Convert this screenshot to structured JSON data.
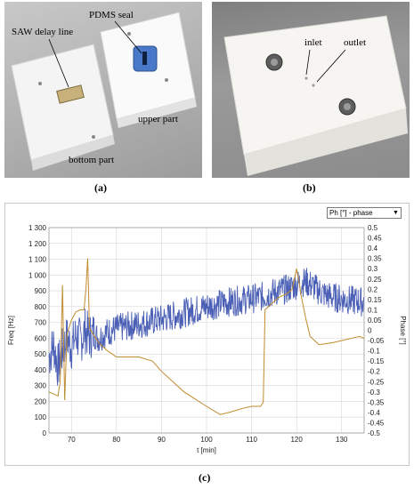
{
  "panel_a": {
    "labels": {
      "saw_delay_line": "SAW delay line",
      "pdms_seal": "PDMS seal",
      "upper_part": "upper part",
      "bottom_part": "bottom part"
    },
    "caption": "(a)"
  },
  "panel_b": {
    "labels": {
      "inlet": "inlet",
      "outlet": "outlet"
    },
    "caption": "(b)"
  },
  "panel_c": {
    "caption": "(c)",
    "series_selector": {
      "value": "Ph [°] - phase",
      "arrow": "▼"
    }
  },
  "colors": {
    "freq": "#4a5fb5",
    "phase": "#e0883a",
    "phase_overlay": "#8a9a2a",
    "grid": "#d6d6d6"
  },
  "chart_data": {
    "type": "line",
    "xlabel": "t [min]",
    "ylabel": "Freq [Hz]",
    "y2label": "Phase [°]",
    "xlim": [
      65,
      135
    ],
    "ylim": [
      0,
      1300
    ],
    "y2lim": [
      -0.5,
      0.5
    ],
    "xticks": [
      70,
      80,
      90,
      100,
      110,
      120,
      130
    ],
    "yticks": [
      "0",
      "100",
      "200",
      "300",
      "400",
      "500",
      "600",
      "700",
      "800",
      "900",
      "1 000",
      "1 100",
      "1 200",
      "1 300"
    ],
    "y2ticks": [
      "0.5",
      "0.45",
      "0.4",
      "0.35",
      "0.3",
      "0.25",
      "0.2",
      "0.15",
      "0.1",
      "0.05",
      "0",
      "-0.05",
      "-0.1",
      "-0.15",
      "-0.2",
      "-0.25",
      "-0.3",
      "-0.35",
      "-0.4",
      "-0.45",
      "-0.5"
    ],
    "grid": true,
    "series": [
      {
        "axis": "left",
        "x": [
          65,
          66,
          67,
          68,
          69,
          70,
          71,
          72,
          73,
          74,
          75,
          76,
          78,
          80,
          85,
          90,
          95,
          100,
          105,
          110,
          112,
          113,
          114,
          116,
          118,
          120,
          122,
          124,
          126,
          128,
          130,
          132,
          135
        ],
        "y": [
          480,
          560,
          420,
          520,
          600,
          540,
          620,
          580,
          650,
          610,
          630,
          600,
          640,
          660,
          690,
          720,
          760,
          800,
          830,
          850,
          860,
          870,
          880,
          900,
          910,
          940,
          960,
          920,
          880,
          860,
          850,
          840,
          830
        ]
      },
      {
        "axis": "right",
        "x": [
          65,
          66,
          67,
          67.5,
          68,
          68.5,
          69,
          70,
          71,
          72,
          72.8,
          73.2,
          73.6,
          74,
          76,
          78,
          80,
          85,
          88,
          90,
          95,
          100,
          103,
          105,
          108,
          110,
          112,
          112.6,
          113,
          114,
          116,
          118,
          119,
          120,
          120.5,
          121,
          122,
          123,
          125,
          128,
          130,
          132,
          134,
          135
        ],
        "y": [
          -0.3,
          -0.31,
          -0.32,
          -0.25,
          0.22,
          -0.34,
          -0.02,
          0.05,
          0.09,
          0.1,
          0.1,
          0.2,
          0.35,
          0.01,
          -0.06,
          -0.1,
          -0.13,
          -0.13,
          -0.15,
          -0.2,
          -0.3,
          -0.37,
          -0.41,
          -0.4,
          -0.38,
          -0.37,
          -0.37,
          -0.35,
          0.1,
          0.12,
          0.16,
          0.18,
          0.2,
          0.3,
          0.24,
          0.17,
          0.06,
          -0.03,
          -0.07,
          -0.06,
          -0.05,
          -0.04,
          -0.03,
          -0.04
        ]
      }
    ]
  }
}
